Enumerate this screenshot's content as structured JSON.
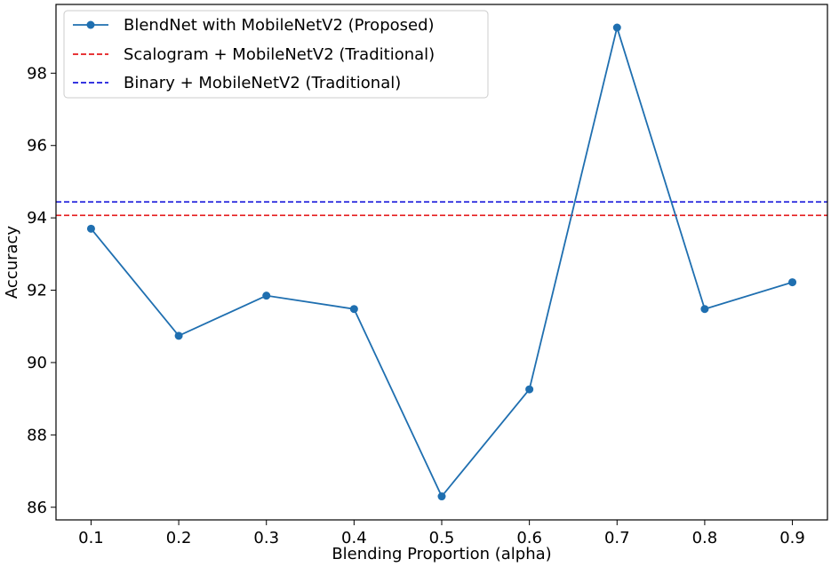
{
  "chart_data": {
    "type": "line",
    "xlabel": "Blending Proportion (alpha)",
    "ylabel": "Accuracy",
    "x": [
      0.1,
      0.2,
      0.3,
      0.4,
      0.5,
      0.6,
      0.7,
      0.8,
      0.9
    ],
    "x_tick_labels": [
      "0.1",
      "0.2",
      "0.3",
      "0.4",
      "0.5",
      "0.6",
      "0.7",
      "0.8",
      "0.9"
    ],
    "y_ticks": [
      86,
      88,
      90,
      92,
      94,
      96,
      98
    ],
    "y_tick_labels": [
      "86",
      "88",
      "90",
      "92",
      "94",
      "96",
      "98"
    ],
    "xlim": [
      0.06,
      0.94
    ],
    "ylim": [
      85.65,
      99.9
    ],
    "grid": false,
    "legend_position": "top-left",
    "series": [
      {
        "name": "BlendNet with MobileNetV2 (Proposed)",
        "kind": "line-marker",
        "color": "#1f6fb0",
        "values": [
          93.7,
          90.74,
          91.85,
          91.48,
          86.3,
          89.26,
          99.26,
          91.48,
          92.22
        ]
      },
      {
        "name": "Scalogram + MobileNetV2 (Traditional)",
        "kind": "hline-dashed",
        "color": "#e41a1c",
        "value": 94.07
      },
      {
        "name": "Binary + MobileNetV2 (Traditional)",
        "kind": "hline-dashed",
        "color": "#1a1adb",
        "value": 94.44
      }
    ]
  }
}
